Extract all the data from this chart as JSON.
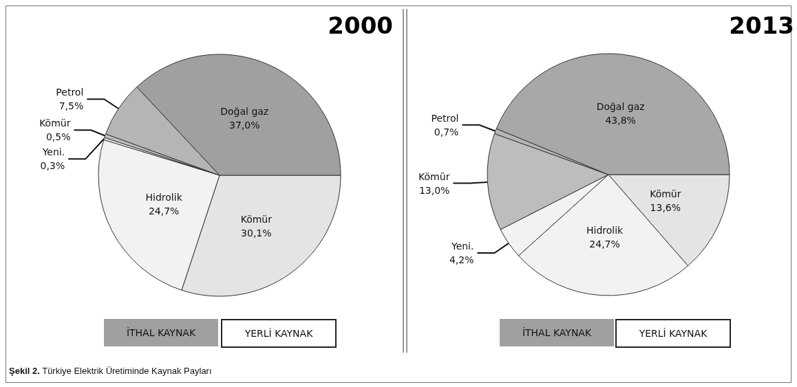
{
  "chart_data": [
    {
      "type": "pie",
      "title": "2000",
      "categories": [
        "Kömür",
        "Hidrolik",
        "Yeni.",
        "Kömür",
        "Petrol",
        "Doğal gaz"
      ],
      "values": [
        30.1,
        24.7,
        0.3,
        0.5,
        7.5,
        37.0
      ],
      "value_labels": [
        "30,1%",
        "24,7%",
        "0,3%",
        "0,5%",
        "7,5%",
        "37,0%"
      ],
      "colors": [
        "#e4e4e4",
        "#f2f2f2",
        "#f2f2f2",
        "#bdbdbd",
        "#b5b5b5",
        "#a0a0a0"
      ],
      "annotations": [
        "İTHAL KAYNAK",
        "YERLİ KAYNAK",
        "Şekil 2. Türkiye Elektrik Üretiminde Kaynak Payları"
      ]
    },
    {
      "type": "pie",
      "title": "2013",
      "categories": [
        "Kömür",
        "Hidrolik",
        "Yeni.",
        "Kömür",
        "Petrol",
        "Doğal gaz"
      ],
      "values": [
        13.6,
        24.7,
        4.2,
        13.0,
        0.7,
        43.8
      ],
      "value_labels": [
        "13,6%",
        "24,7%",
        "4,2%",
        "13,0%",
        "0,7%",
        "43,8%"
      ],
      "colors": [
        "#e4e4e4",
        "#f2f2f2",
        "#f2f2f2",
        "#bdbdbd",
        "#b5b5b5",
        "#a8a8a8"
      ],
      "annotations": [
        "İTHAL KAYNAK",
        "YERLİ KAYNAK"
      ]
    }
  ]
}
